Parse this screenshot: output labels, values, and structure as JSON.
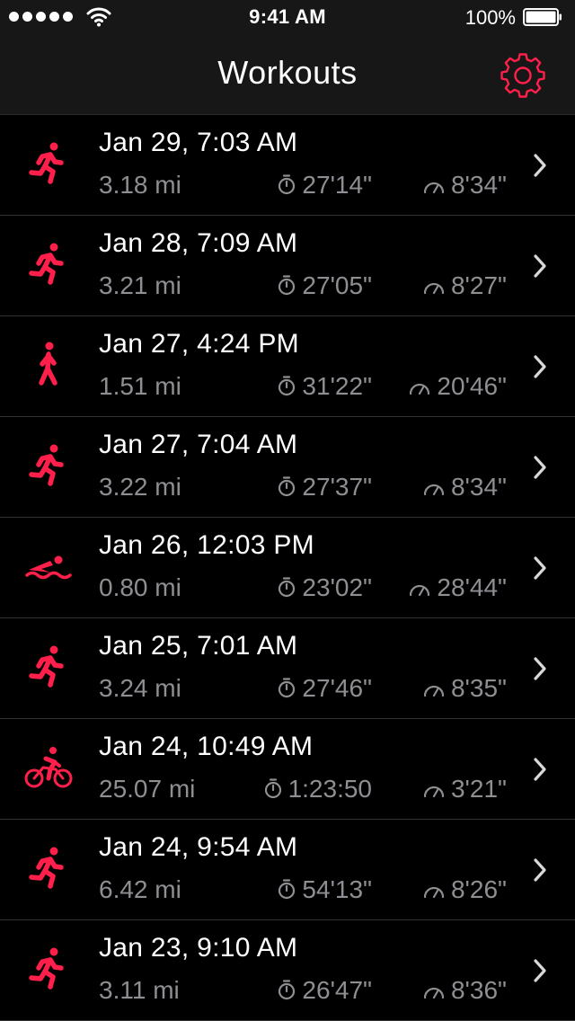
{
  "status_bar": {
    "time": "9:41 AM",
    "battery": "100%"
  },
  "nav": {
    "title": "Workouts",
    "settings_icon": "gear-icon"
  },
  "colors": {
    "accent": "#ff1f4b",
    "secondary_text": "#8e8e93",
    "bar_background": "#171717"
  },
  "workouts": [
    {
      "type": "run",
      "icon": "running-icon",
      "date": "Jan 29, 7:03 AM",
      "distance": "3.18 mi",
      "duration": "27'14\"",
      "pace": "8'34\""
    },
    {
      "type": "run",
      "icon": "running-icon",
      "date": "Jan 28, 7:09 AM",
      "distance": "3.21 mi",
      "duration": "27'05\"",
      "pace": "8'27\""
    },
    {
      "type": "walk",
      "icon": "walking-icon",
      "date": "Jan 27, 4:24 PM",
      "distance": "1.51 mi",
      "duration": "31'22\"",
      "pace": "20'46\""
    },
    {
      "type": "run",
      "icon": "running-icon",
      "date": "Jan 27, 7:04 AM",
      "distance": "3.22 mi",
      "duration": "27'37\"",
      "pace": "8'34\""
    },
    {
      "type": "swim",
      "icon": "swimming-icon",
      "date": "Jan 26, 12:03 PM",
      "distance": "0.80 mi",
      "duration": "23'02\"",
      "pace": "28'44\""
    },
    {
      "type": "run",
      "icon": "running-icon",
      "date": "Jan 25, 7:01 AM",
      "distance": "3.24 mi",
      "duration": "27'46\"",
      "pace": "8'35\""
    },
    {
      "type": "bike",
      "icon": "cycling-icon",
      "date": "Jan 24, 10:49 AM",
      "distance": "25.07 mi",
      "duration": "1:23:50",
      "pace": "3'21\""
    },
    {
      "type": "run",
      "icon": "running-icon",
      "date": "Jan 24, 9:54 AM",
      "distance": "6.42 mi",
      "duration": "54'13\"",
      "pace": "8'26\""
    },
    {
      "type": "run",
      "icon": "running-icon",
      "date": "Jan 23, 9:10 AM",
      "distance": "3.11 mi",
      "duration": "26'47\"",
      "pace": "8'36\""
    }
  ]
}
